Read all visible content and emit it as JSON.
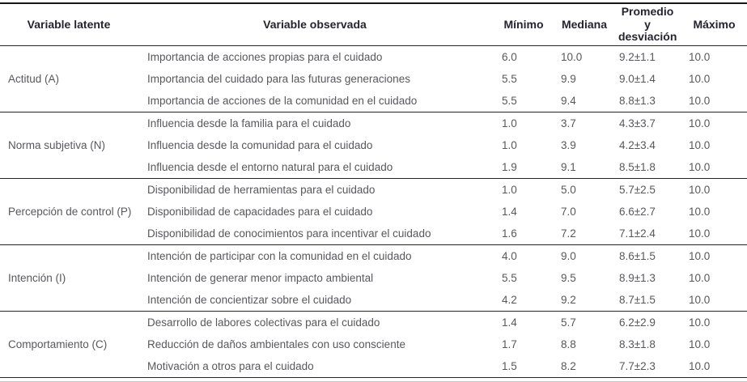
{
  "page": {
    "background": "#ffffff"
  },
  "colors": {
    "header_text": "#27232e",
    "body_text": "#57585c",
    "rule_dark": "#252525",
    "rule_top": "#161616",
    "rule_light": "#c4c4c4"
  },
  "table": {
    "headers": {
      "latent": "Variable latente",
      "observed": "Variable observada",
      "min": "Mínimo",
      "median": "Mediana",
      "mean_sd": "Promedio y desviación",
      "max": "Máximo"
    },
    "groups": [
      {
        "latent": "Actitud (A)",
        "rows": [
          {
            "observed": "Importancia de acciones propias para el cuidado",
            "min": "6.0",
            "median": "10.0",
            "mean_sd": "9.2±1.1",
            "max": "10.0"
          },
          {
            "observed": "Importancia del cuidado para las futuras generaciones",
            "min": "5.5",
            "median": "9.9",
            "mean_sd": "9.0±1.4",
            "max": "10.0"
          },
          {
            "observed": "Importancia de acciones de la comunidad en el cuidado",
            "min": "5.5",
            "median": "9.4",
            "mean_sd": "8.8±1.3",
            "max": "10.0"
          }
        ]
      },
      {
        "latent": "Norma subjetiva (N)",
        "rows": [
          {
            "observed": "Influencia desde la familia para el cuidado",
            "min": "1.0",
            "median": "3.7",
            "mean_sd": "4.3±3.7",
            "max": "10.0"
          },
          {
            "observed": "Influencia desde la comunidad para el cuidado",
            "min": "1.0",
            "median": "3.9",
            "mean_sd": "4.2±3.4",
            "max": "10.0"
          },
          {
            "observed": "Influencia desde el entorno natural para el cuidado",
            "min": "1.9",
            "median": "9.1",
            "mean_sd": "8.5±1.8",
            "max": "10.0"
          }
        ]
      },
      {
        "latent": "Percepción de control (P)",
        "rows": [
          {
            "observed": "Disponibilidad de herramientas para el cuidado",
            "min": "1.0",
            "median": "5.0",
            "mean_sd": "5.7±2.5",
            "max": "10.0"
          },
          {
            "observed": "Disponibilidad de capacidades para el cuidado",
            "min": "1.4",
            "median": "7.0",
            "mean_sd": "6.6±2.7",
            "max": "10.0"
          },
          {
            "observed": "Disponibilidad de conocimientos para incentivar el cuidado",
            "min": "1.6",
            "median": "7.2",
            "mean_sd": "7.1±2.4",
            "max": "10.0"
          }
        ]
      },
      {
        "latent": "Intención (I)",
        "rows": [
          {
            "observed": "Intención de participar con la comunidad en el cuidado",
            "min": "4.0",
            "median": "9.0",
            "mean_sd": "8.6±1.5",
            "max": "10.0"
          },
          {
            "observed": "Intención de generar menor impacto ambiental",
            "min": "5.5",
            "median": "9.5",
            "mean_sd": "8.9±1.3",
            "max": "10.0"
          },
          {
            "observed": "Intención de concientizar sobre el cuidado",
            "min": "4.2",
            "median": "9.2",
            "mean_sd": "8.7±1.5",
            "max": "10.0"
          }
        ]
      },
      {
        "latent": "Comportamiento (C)",
        "rows": [
          {
            "observed": "Desarrollo de labores colectivas para el cuidado",
            "min": "1.4",
            "median": "5.7",
            "mean_sd": "6.2±2.9",
            "max": "10.0"
          },
          {
            "observed": "Reducción de daños ambientales con uso consciente",
            "min": "1.7",
            "median": "8.8",
            "mean_sd": "8.3±1.8",
            "max": "10.0"
          },
          {
            "observed": "Motivación a otros para el cuidado",
            "min": "1.5",
            "median": "8.2",
            "mean_sd": "7.7±2.3",
            "max": "10.0"
          }
        ]
      }
    ]
  }
}
